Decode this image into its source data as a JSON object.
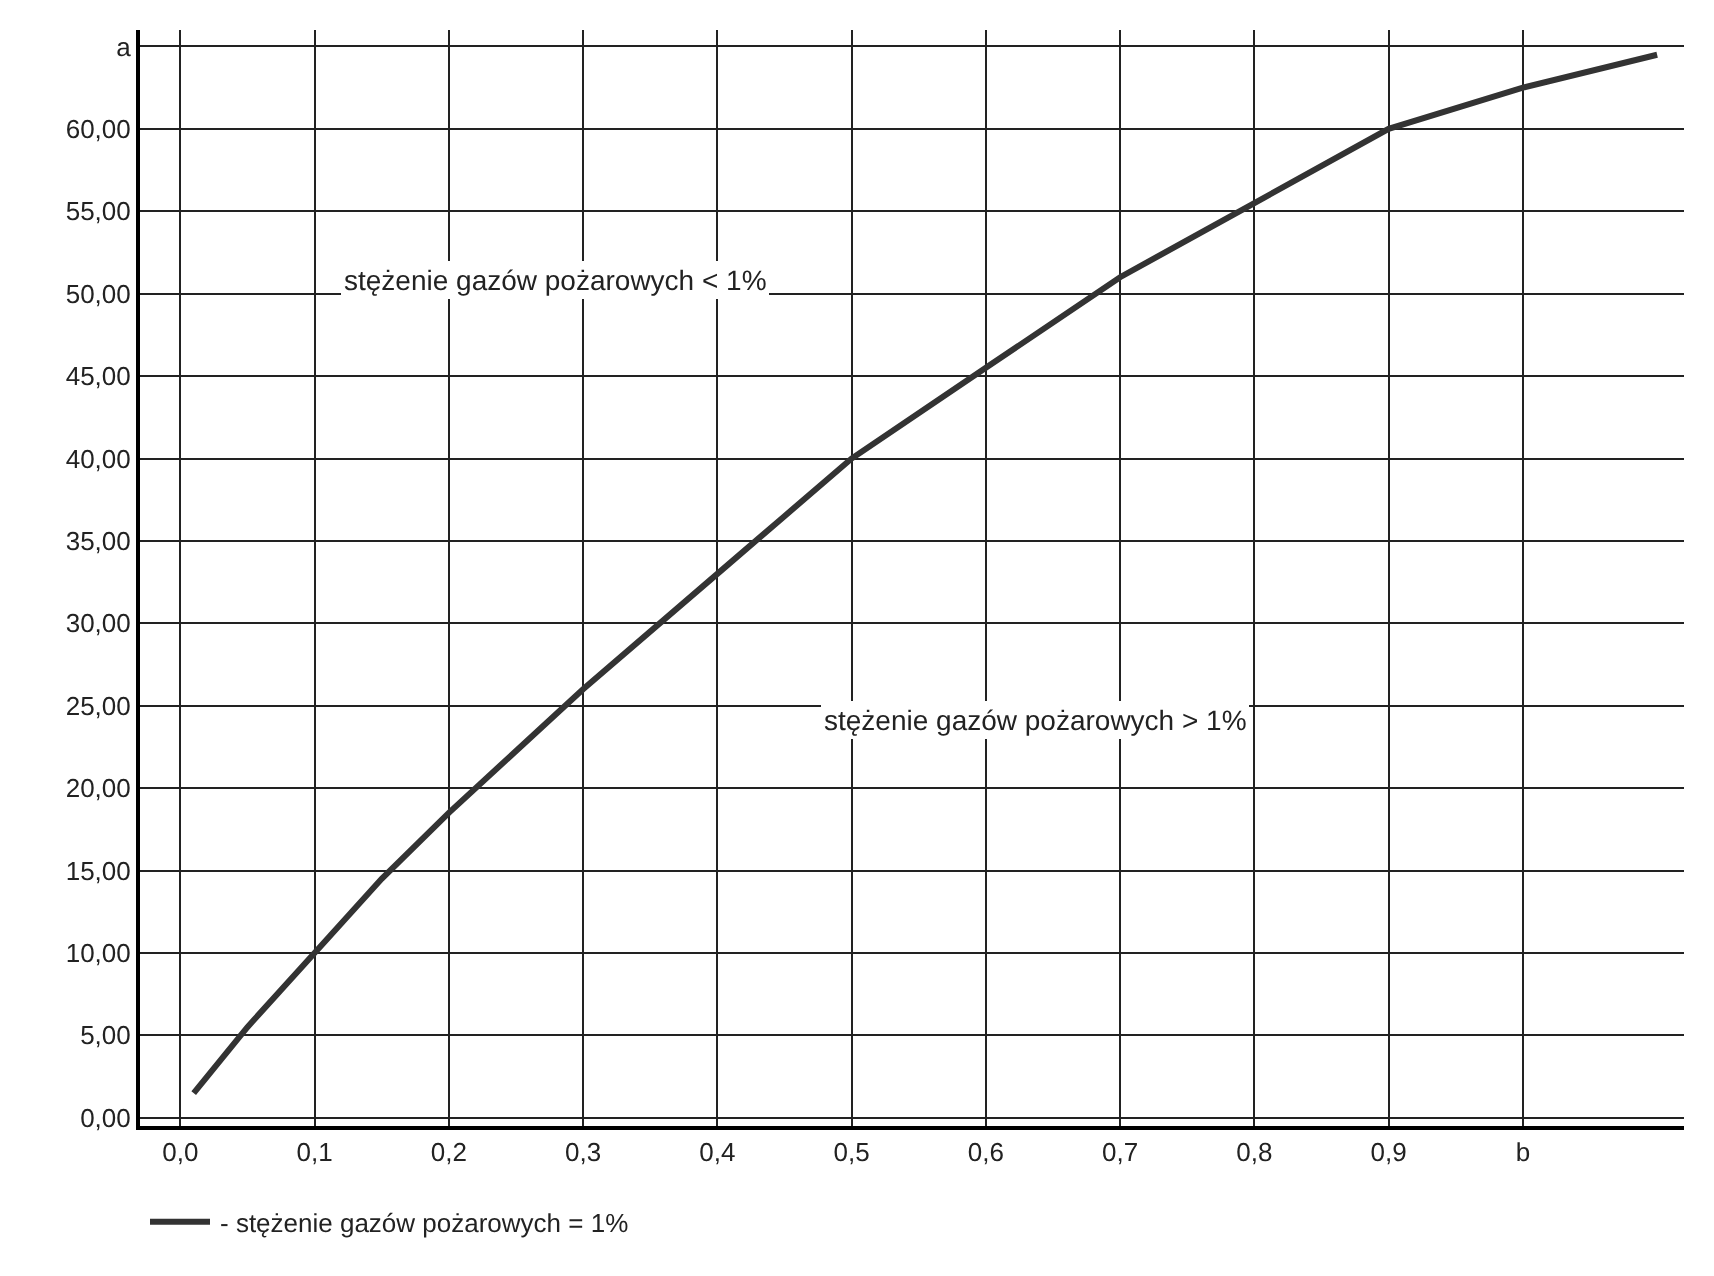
{
  "chart_data": {
    "type": "line",
    "x": [
      0.01,
      0.05,
      0.1,
      0.15,
      0.2,
      0.3,
      0.4,
      0.45,
      0.5,
      0.6,
      0.7,
      0.8,
      0.9,
      1.0,
      1.1
    ],
    "series": [
      {
        "name": "- stężenie gazów pożarowych = 1%",
        "color": "#333333",
        "values": [
          1.5,
          5.5,
          10,
          14.5,
          18.5,
          26,
          33,
          36.5,
          40,
          45.5,
          51,
          55.5,
          60,
          62.5,
          64.5
        ]
      }
    ],
    "xlim": [
      -0.03,
      1.12
    ],
    "ylim": [
      -0.5,
      66
    ],
    "xticks": [
      {
        "value": 0,
        "label": "0,0"
      },
      {
        "value": 0.1,
        "label": "0,1"
      },
      {
        "value": 0.2,
        "label": "0,2"
      },
      {
        "value": 0.3,
        "label": "0,3"
      },
      {
        "value": 0.4,
        "label": "0,4"
      },
      {
        "value": 0.5,
        "label": "0,5"
      },
      {
        "value": 0.6,
        "label": "0,6"
      },
      {
        "value": 0.7,
        "label": "0,7"
      },
      {
        "value": 0.8,
        "label": "0,8"
      },
      {
        "value": 0.9,
        "label": "0,9"
      },
      {
        "value": 1.0,
        "label": "b"
      }
    ],
    "yticks": [
      {
        "value": 0,
        "label": "0,00"
      },
      {
        "value": 5,
        "label": "5,00"
      },
      {
        "value": 10,
        "label": "10,00"
      },
      {
        "value": 15,
        "label": "15,00"
      },
      {
        "value": 20,
        "label": "20,00"
      },
      {
        "value": 25,
        "label": "25,00"
      },
      {
        "value": 30,
        "label": "30,00"
      },
      {
        "value": 35,
        "label": "35,00"
      },
      {
        "value": 40,
        "label": "40,00"
      },
      {
        "value": 45,
        "label": "45,00"
      },
      {
        "value": 50,
        "label": "50,00"
      },
      {
        "value": 55,
        "label": "55,00"
      },
      {
        "value": 60,
        "label": "60,00"
      },
      {
        "value": 65,
        "label": "a"
      }
    ],
    "annotations": [
      "stężenie gazów pożarowych < 1%",
      "stężenie gazów pożarowych > 1%"
    ],
    "grid": true,
    "legend": "bottom left",
    "marker": "none",
    "line_style": "solid"
  }
}
